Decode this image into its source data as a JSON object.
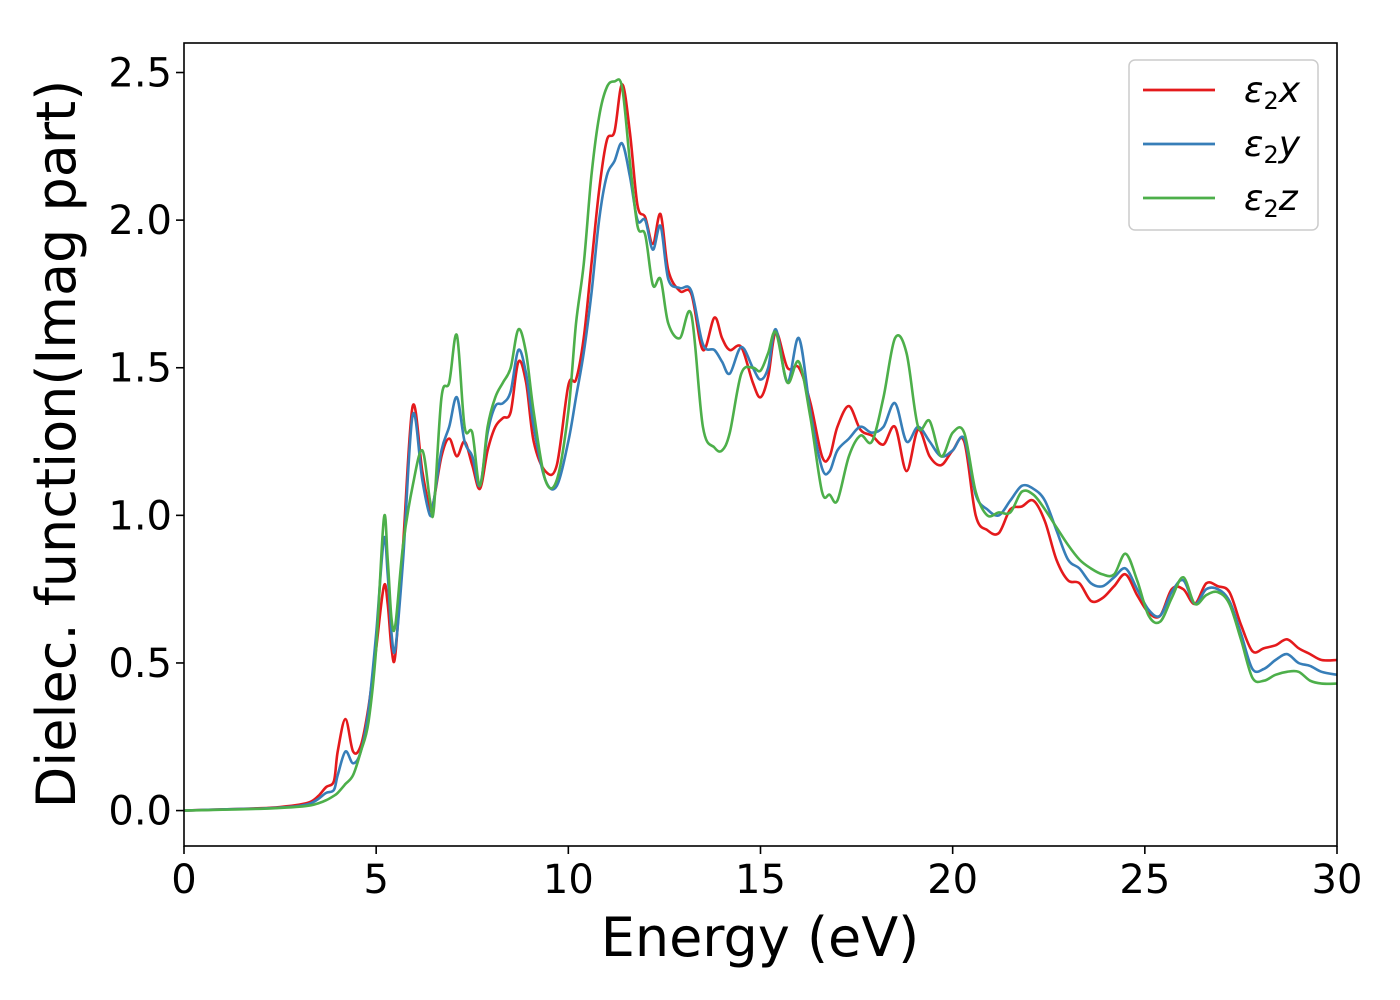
{
  "chart_data": {
    "type": "line",
    "title": "",
    "xlabel": "Energy (eV)",
    "ylabel": "Dielec. function(Imag part)",
    "xlim": [
      0,
      30
    ],
    "ylim": [
      -0.12,
      2.6
    ],
    "xticks": [
      0,
      5,
      10,
      15,
      20,
      25,
      30
    ],
    "xtick_labels": [
      "0",
      "5",
      "10",
      "15",
      "20",
      "25",
      "30"
    ],
    "yticks": [
      0.0,
      0.5,
      1.0,
      1.5,
      2.0,
      2.5
    ],
    "ytick_labels": [
      "0.0",
      "0.5",
      "1.0",
      "1.5",
      "2.0",
      "2.5"
    ],
    "grid": false,
    "legend_position": "top-right",
    "series": [
      {
        "name": "ε2x",
        "legend_base": "ε",
        "legend_sub": "2",
        "legend_var": "x",
        "color": "#e41a1c",
        "x": [
          0,
          1,
          2,
          2.5,
          3,
          3.3,
          3.5,
          3.7,
          3.9,
          4.0,
          4.2,
          4.4,
          4.6,
          4.8,
          5.0,
          5.2,
          5.3,
          5.4,
          5.5,
          5.7,
          5.95,
          6.2,
          6.4,
          6.5,
          6.7,
          6.9,
          7.1,
          7.3,
          7.5,
          7.7,
          7.9,
          8.1,
          8.3,
          8.5,
          8.7,
          8.9,
          9.1,
          9.4,
          9.7,
          10.0,
          10.2,
          10.4,
          10.6,
          10.8,
          11.0,
          11.2,
          11.4,
          11.6,
          11.8,
          12.0,
          12.2,
          12.4,
          12.6,
          12.9,
          13.2,
          13.5,
          13.8,
          14.0,
          14.2,
          14.5,
          14.8,
          15.0,
          15.2,
          15.4,
          15.7,
          16.0,
          16.3,
          16.6,
          16.8,
          17.0,
          17.3,
          17.6,
          17.9,
          18.2,
          18.5,
          18.8,
          19.1,
          19.4,
          19.7,
          20.0,
          20.3,
          20.6,
          20.9,
          21.2,
          21.5,
          21.8,
          22.1,
          22.4,
          22.7,
          23.0,
          23.3,
          23.6,
          23.9,
          24.2,
          24.5,
          24.8,
          25.1,
          25.4,
          25.7,
          26.0,
          26.3,
          26.6,
          26.9,
          27.2,
          27.5,
          27.8,
          28.1,
          28.4,
          28.7,
          29.0,
          29.3,
          29.6,
          30.0
        ],
        "y": [
          0.0,
          0.004,
          0.008,
          0.012,
          0.02,
          0.03,
          0.05,
          0.08,
          0.1,
          0.2,
          0.31,
          0.2,
          0.22,
          0.35,
          0.55,
          0.76,
          0.7,
          0.55,
          0.53,
          0.9,
          1.37,
          1.15,
          1.02,
          1.05,
          1.2,
          1.26,
          1.2,
          1.25,
          1.17,
          1.09,
          1.22,
          1.3,
          1.33,
          1.35,
          1.52,
          1.45,
          1.25,
          1.15,
          1.17,
          1.44,
          1.46,
          1.6,
          1.85,
          2.1,
          2.27,
          2.3,
          2.46,
          2.3,
          2.05,
          2.01,
          1.92,
          2.02,
          1.83,
          1.76,
          1.75,
          1.56,
          1.67,
          1.6,
          1.56,
          1.57,
          1.45,
          1.4,
          1.47,
          1.62,
          1.5,
          1.5,
          1.38,
          1.2,
          1.2,
          1.3,
          1.37,
          1.29,
          1.27,
          1.24,
          1.3,
          1.15,
          1.29,
          1.2,
          1.17,
          1.22,
          1.25,
          1.0,
          0.95,
          0.94,
          1.02,
          1.03,
          1.05,
          0.98,
          0.85,
          0.78,
          0.77,
          0.71,
          0.72,
          0.76,
          0.8,
          0.73,
          0.67,
          0.66,
          0.75,
          0.75,
          0.7,
          0.77,
          0.76,
          0.74,
          0.63,
          0.54,
          0.55,
          0.56,
          0.58,
          0.55,
          0.53,
          0.51,
          0.51
        ]
      },
      {
        "name": "ε2y",
        "legend_base": "ε",
        "legend_sub": "2",
        "legend_var": "y",
        "color": "#377eb8",
        "x": [
          0,
          1,
          2,
          2.5,
          3,
          3.3,
          3.5,
          3.7,
          3.9,
          4.0,
          4.2,
          4.4,
          4.6,
          4.8,
          5.0,
          5.2,
          5.3,
          5.4,
          5.5,
          5.7,
          5.95,
          6.2,
          6.4,
          6.5,
          6.7,
          6.9,
          7.1,
          7.3,
          7.5,
          7.7,
          7.9,
          8.1,
          8.3,
          8.5,
          8.7,
          8.9,
          9.1,
          9.4,
          9.7,
          10.0,
          10.2,
          10.4,
          10.6,
          10.8,
          11.0,
          11.2,
          11.4,
          11.6,
          11.8,
          12.0,
          12.2,
          12.4,
          12.6,
          12.9,
          13.2,
          13.5,
          13.8,
          14.0,
          14.2,
          14.5,
          14.8,
          15.0,
          15.2,
          15.4,
          15.7,
          16.0,
          16.3,
          16.6,
          16.8,
          17.0,
          17.3,
          17.6,
          17.9,
          18.2,
          18.5,
          18.8,
          19.1,
          19.4,
          19.7,
          20.0,
          20.3,
          20.6,
          20.9,
          21.2,
          21.5,
          21.8,
          22.1,
          22.4,
          22.7,
          23.0,
          23.3,
          23.6,
          23.9,
          24.2,
          24.5,
          24.8,
          25.1,
          25.4,
          25.7,
          26.0,
          26.3,
          26.6,
          26.9,
          27.2,
          27.5,
          27.8,
          28.1,
          28.4,
          28.7,
          29.0,
          29.3,
          29.6,
          30.0
        ],
        "y": [
          0.0,
          0.004,
          0.007,
          0.01,
          0.016,
          0.025,
          0.04,
          0.06,
          0.07,
          0.12,
          0.2,
          0.16,
          0.2,
          0.34,
          0.6,
          0.92,
          0.8,
          0.6,
          0.55,
          0.85,
          1.34,
          1.12,
          1.0,
          1.05,
          1.22,
          1.3,
          1.4,
          1.25,
          1.2,
          1.1,
          1.28,
          1.37,
          1.38,
          1.42,
          1.56,
          1.48,
          1.3,
          1.12,
          1.1,
          1.25,
          1.4,
          1.55,
          1.75,
          2.0,
          2.15,
          2.2,
          2.26,
          2.15,
          2.0,
          2.0,
          1.9,
          1.98,
          1.8,
          1.77,
          1.76,
          1.58,
          1.56,
          1.52,
          1.48,
          1.57,
          1.5,
          1.46,
          1.5,
          1.63,
          1.45,
          1.6,
          1.35,
          1.16,
          1.15,
          1.22,
          1.26,
          1.3,
          1.28,
          1.3,
          1.38,
          1.25,
          1.3,
          1.25,
          1.2,
          1.22,
          1.26,
          1.07,
          1.02,
          1.0,
          1.05,
          1.1,
          1.09,
          1.05,
          0.95,
          0.85,
          0.82,
          0.77,
          0.76,
          0.79,
          0.82,
          0.75,
          0.68,
          0.66,
          0.74,
          0.78,
          0.7,
          0.75,
          0.75,
          0.71,
          0.6,
          0.48,
          0.48,
          0.51,
          0.53,
          0.5,
          0.49,
          0.47,
          0.46
        ]
      },
      {
        "name": "ε2z",
        "legend_base": "ε",
        "legend_sub": "2",
        "legend_var": "z",
        "color": "#4daf4a",
        "x": [
          0,
          1,
          2,
          2.5,
          3,
          3.3,
          3.5,
          3.7,
          3.9,
          4.0,
          4.2,
          4.4,
          4.6,
          4.8,
          5.0,
          5.2,
          5.3,
          5.4,
          5.5,
          5.7,
          5.95,
          6.2,
          6.4,
          6.5,
          6.7,
          6.9,
          7.1,
          7.3,
          7.5,
          7.7,
          7.9,
          8.1,
          8.3,
          8.5,
          8.7,
          8.9,
          9.1,
          9.4,
          9.7,
          10.0,
          10.2,
          10.4,
          10.6,
          10.8,
          11.0,
          11.2,
          11.4,
          11.6,
          11.8,
          12.0,
          12.2,
          12.4,
          12.6,
          12.9,
          13.2,
          13.5,
          13.8,
          14.0,
          14.2,
          14.5,
          14.8,
          15.0,
          15.2,
          15.4,
          15.7,
          16.0,
          16.3,
          16.6,
          16.8,
          17.0,
          17.3,
          17.6,
          17.9,
          18.2,
          18.5,
          18.8,
          19.1,
          19.4,
          19.7,
          20.0,
          20.3,
          20.6,
          20.9,
          21.2,
          21.5,
          21.8,
          22.1,
          22.4,
          22.7,
          23.0,
          23.3,
          23.6,
          23.9,
          24.2,
          24.5,
          24.8,
          25.1,
          25.4,
          25.7,
          26.0,
          26.3,
          26.6,
          26.9,
          27.2,
          27.5,
          27.8,
          28.1,
          28.4,
          28.7,
          29.0,
          29.3,
          29.6,
          30.0
        ],
        "y": [
          0.0,
          0.003,
          0.006,
          0.009,
          0.013,
          0.018,
          0.025,
          0.035,
          0.05,
          0.06,
          0.09,
          0.12,
          0.2,
          0.3,
          0.55,
          0.99,
          0.85,
          0.65,
          0.63,
          0.9,
          1.1,
          1.22,
          1.05,
          1.02,
          1.4,
          1.45,
          1.61,
          1.3,
          1.28,
          1.1,
          1.3,
          1.4,
          1.45,
          1.5,
          1.63,
          1.55,
          1.35,
          1.12,
          1.12,
          1.35,
          1.65,
          1.85,
          2.15,
          2.35,
          2.45,
          2.47,
          2.45,
          2.2,
          1.98,
          1.95,
          1.78,
          1.8,
          1.65,
          1.6,
          1.68,
          1.3,
          1.23,
          1.22,
          1.28,
          1.48,
          1.5,
          1.49,
          1.55,
          1.62,
          1.45,
          1.52,
          1.33,
          1.08,
          1.07,
          1.05,
          1.2,
          1.27,
          1.25,
          1.4,
          1.6,
          1.55,
          1.3,
          1.32,
          1.2,
          1.28,
          1.28,
          1.08,
          1.0,
          1.01,
          1.01,
          1.08,
          1.07,
          1.02,
          0.96,
          0.9,
          0.85,
          0.82,
          0.8,
          0.8,
          0.87,
          0.78,
          0.66,
          0.64,
          0.72,
          0.79,
          0.7,
          0.73,
          0.74,
          0.7,
          0.58,
          0.45,
          0.44,
          0.46,
          0.47,
          0.47,
          0.44,
          0.43,
          0.43
        ]
      }
    ]
  }
}
